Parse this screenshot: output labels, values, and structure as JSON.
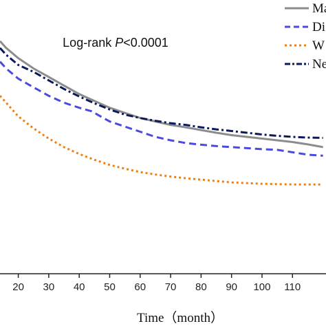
{
  "chart_data": {
    "type": "line",
    "title": "",
    "xlabel": "Time（month）",
    "ylabel": "",
    "xlim": [
      14,
      121
    ],
    "ylim": [
      0.2,
      1.0
    ],
    "xticks": [
      20,
      30,
      40,
      50,
      60,
      70,
      80,
      90,
      100,
      110
    ],
    "xtick_labels": [
      "20",
      "30",
      "40",
      "50",
      "60",
      "70",
      "80",
      "90",
      "100",
      "110"
    ],
    "annotation": {
      "prefix": "Log-rank ",
      "italic": "P",
      "suffix": "<0.0001"
    },
    "grid": false,
    "legend_position": "top-right",
    "series": [
      {
        "name": "Ma",
        "color": "#8c8c8c",
        "dash": "solid",
        "x": [
          14,
          16,
          20,
          25,
          30,
          35,
          40,
          45,
          50,
          55,
          60,
          65,
          70,
          75,
          80,
          85,
          90,
          95,
          100,
          105,
          110,
          115,
          120
        ],
        "y": [
          0.88,
          0.86,
          0.83,
          0.8,
          0.775,
          0.75,
          0.725,
          0.705,
          0.685,
          0.67,
          0.655,
          0.645,
          0.635,
          0.628,
          0.62,
          0.612,
          0.605,
          0.6,
          0.595,
          0.59,
          0.585,
          0.578,
          0.57
        ]
      },
      {
        "name": "Di",
        "color": "#4a4ae0",
        "dash": "dash",
        "x": [
          14,
          16,
          20,
          25,
          30,
          35,
          40,
          44,
          47,
          50,
          55,
          60,
          65,
          70,
          75,
          80,
          85,
          90,
          95,
          100,
          105,
          110,
          115,
          120
        ],
        "y": [
          0.82,
          0.8,
          0.77,
          0.745,
          0.72,
          0.7,
          0.685,
          0.675,
          0.66,
          0.645,
          0.63,
          0.615,
          0.6,
          0.59,
          0.582,
          0.577,
          0.573,
          0.57,
          0.567,
          0.564,
          0.562,
          0.555,
          0.548,
          0.545
        ]
      },
      {
        "name": "W",
        "color": "#f07f10",
        "dash": "dot",
        "x": [
          14,
          16,
          20,
          25,
          30,
          35,
          40,
          45,
          50,
          55,
          60,
          65,
          70,
          75,
          80,
          85,
          90,
          95,
          100,
          105,
          110,
          115,
          120
        ],
        "y": [
          0.72,
          0.7,
          0.66,
          0.625,
          0.595,
          0.57,
          0.55,
          0.533,
          0.518,
          0.507,
          0.497,
          0.49,
          0.484,
          0.479,
          0.475,
          0.471,
          0.467,
          0.465,
          0.463,
          0.462,
          0.461,
          0.461,
          0.461
        ]
      },
      {
        "name": "Ne",
        "color": "#0b1a5c",
        "dash": "dashdot",
        "x": [
          14,
          16,
          20,
          25,
          30,
          35,
          40,
          45,
          50,
          55,
          60,
          65,
          70,
          75,
          80,
          85,
          90,
          95,
          100,
          105,
          110,
          115,
          120
        ],
        "y": [
          0.86,
          0.84,
          0.81,
          0.79,
          0.765,
          0.74,
          0.718,
          0.698,
          0.68,
          0.665,
          0.655,
          0.647,
          0.64,
          0.635,
          0.628,
          0.622,
          0.617,
          0.612,
          0.607,
          0.603,
          0.6,
          0.598,
          0.597
        ]
      }
    ]
  }
}
